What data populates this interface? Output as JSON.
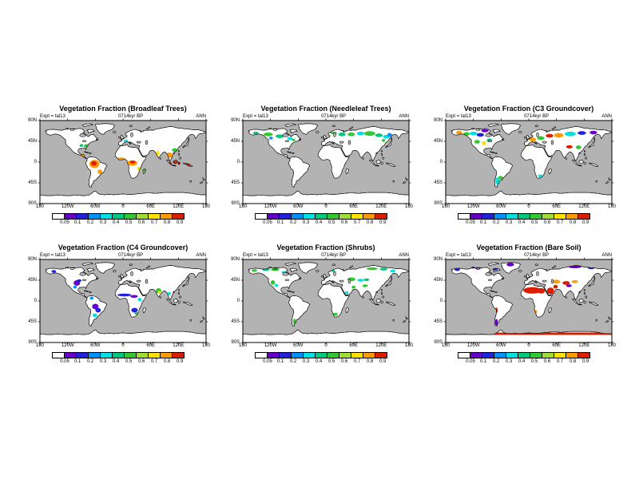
{
  "figure": {
    "background": "#ffffff",
    "ocean_color": "#b3b3b3",
    "land_color": "#ffffff",
    "coast_color": "#000000"
  },
  "axes": {
    "lat_labels": [
      "90N",
      "45N",
      "0",
      "45S",
      "90S"
    ],
    "lon_labels": [
      "180",
      "120W",
      "60W",
      "0",
      "60E",
      "120E",
      "180"
    ]
  },
  "colorbar": {
    "labels": [
      "0.05",
      "0.1",
      "0.2",
      "0.3",
      "0.4",
      "0.5",
      "0.6",
      "0.7",
      "0.8",
      "0.9"
    ],
    "colors": [
      "#ffffff",
      "#6400c8",
      "#2222dd",
      "#0091ff",
      "#00e1e1",
      "#00c87d",
      "#32c832",
      "#a0dc32",
      "#ffe100",
      "#ff9b00",
      "#dc1e00"
    ]
  },
  "panels": [
    {
      "title": "Vegetation Fraction (Broadleaf Trees)",
      "expt": "Expt = tal13",
      "time": "0714kyr BP",
      "season": "ANN",
      "patches": [
        [
          -62,
          -4,
          11,
          9,
          "#ff9b00"
        ],
        [
          -63,
          -3,
          6,
          5,
          "#dc1e00"
        ],
        [
          -50,
          -21,
          5,
          5,
          "#ff9b00"
        ],
        [
          -88,
          13,
          6,
          4,
          "#ff9b00"
        ],
        [
          -79,
          35,
          6,
          4,
          "#32c832"
        ],
        [
          -90,
          36,
          4,
          3,
          "#00c87d"
        ],
        [
          20,
          -2,
          11,
          6,
          "#ff9b00"
        ],
        [
          21,
          0,
          6,
          3,
          "#dc1e00"
        ],
        [
          -4,
          7,
          9,
          3,
          "#ff9b00"
        ],
        [
          35,
          -14,
          4,
          4,
          "#ffe100"
        ],
        [
          47,
          -19,
          2.5,
          4,
          "#32c832"
        ],
        [
          75,
          19,
          3,
          6,
          "#ffe100"
        ],
        [
          100,
          15,
          7,
          6,
          "#ff9b00"
        ],
        [
          113,
          -2,
          14,
          5,
          "#dc1e00"
        ],
        [
          141,
          -6,
          7,
          3,
          "#dc1e00"
        ],
        [
          148,
          -26,
          4,
          8,
          "#ff9b00"
        ],
        [
          112,
          26,
          6,
          4,
          "#32c832"
        ],
        [
          6,
          46,
          5,
          3,
          "#00e1e1"
        ]
      ]
    },
    {
      "title": "Vegetation Fraction (Needleleaf Trees)",
      "expt": "Expt = tal13",
      "time": "0714kyr BP",
      "season": "ANN",
      "patches": [
        [
          -152,
          63,
          6,
          3,
          "#00c87d"
        ],
        [
          -125,
          60,
          10,
          4,
          "#32c832"
        ],
        [
          -100,
          56,
          9,
          4,
          "#00c87d"
        ],
        [
          -78,
          51,
          6,
          3,
          "#00e1e1"
        ],
        [
          -119,
          52,
          4,
          3,
          "#0091ff"
        ],
        [
          17,
          63,
          7,
          3,
          "#32c832"
        ],
        [
          35,
          60,
          8,
          4,
          "#00c87d"
        ],
        [
          55,
          60,
          8,
          4,
          "#32c832"
        ],
        [
          75,
          62,
          8,
          4,
          "#00e1e1"
        ],
        [
          95,
          62,
          12,
          5,
          "#32c832"
        ],
        [
          115,
          58,
          8,
          4,
          "#00c87d"
        ],
        [
          131,
          55,
          7,
          4,
          "#00e1e1"
        ],
        [
          125,
          47,
          4,
          3,
          "#32c832"
        ],
        [
          138,
          59,
          5,
          4,
          "#0091ff"
        ],
        [
          -70,
          48,
          4,
          2.5,
          "#32c832"
        ]
      ]
    },
    {
      "title": "Vegetation Fraction (C3 Groundcover)",
      "expt": "Expt = tal13",
      "time": "0714kyr BP",
      "season": "ANN",
      "patches": [
        [
          -151,
          64,
          7,
          3.5,
          "#ff9b00"
        ],
        [
          -135,
          61,
          7,
          4,
          "#32c832"
        ],
        [
          -120,
          62,
          8,
          4,
          "#00e1e1"
        ],
        [
          -105,
          59,
          8,
          4,
          "#2222dd"
        ],
        [
          -95,
          68,
          8,
          3.5,
          "#6400c8"
        ],
        [
          -112,
          44,
          6,
          4,
          "#32c832"
        ],
        [
          -97,
          41,
          5,
          4,
          "#ffe100"
        ],
        [
          -85,
          47,
          6,
          4,
          "#00c87d"
        ],
        [
          -68,
          -41,
          4,
          8,
          "#00e1e1"
        ],
        [
          -61,
          -34,
          5,
          4,
          "#32c832"
        ],
        [
          8,
          49,
          8,
          4,
          "#ff9b00"
        ],
        [
          26,
          52,
          8,
          4,
          "#32c832"
        ],
        [
          45,
          57,
          8,
          4,
          "#dc1e00"
        ],
        [
          65,
          58,
          10,
          5,
          "#ff9b00"
        ],
        [
          90,
          61,
          12,
          5,
          "#00e1e1"
        ],
        [
          115,
          63,
          9,
          4,
          "#2222dd"
        ],
        [
          140,
          64,
          8,
          4,
          "#6400c8"
        ],
        [
          88,
          33,
          7,
          3.5,
          "#dc1e00"
        ],
        [
          108,
          32,
          6,
          4,
          "#32c832"
        ],
        [
          25,
          -30,
          5,
          3,
          "#00e1e1"
        ],
        [
          143,
          -35,
          5,
          3,
          "#32c832"
        ],
        [
          118,
          -31,
          4,
          3,
          "#00e1e1"
        ],
        [
          -70,
          60,
          5,
          3,
          "#0091ff"
        ]
      ]
    },
    {
      "title": "Vegetation Fraction (C4 Groundcover)",
      "expt": "Expt = tal13",
      "time": "0714kyr BP",
      "season": "ANN",
      "patches": [
        [
          -100,
          39,
          7,
          6,
          "#6400c8"
        ],
        [
          -95,
          44,
          5,
          3,
          "#2222dd"
        ],
        [
          -104,
          30,
          4,
          3,
          "#0091ff"
        ],
        [
          -150,
          64,
          5,
          3,
          "#2222dd"
        ],
        [
          -60,
          -12,
          7,
          6,
          "#6400c8"
        ],
        [
          -54,
          -20,
          6,
          5,
          "#2222dd"
        ],
        [
          -61,
          -31,
          5,
          4,
          "#00e1e1"
        ],
        [
          -68,
          6,
          4,
          3,
          "#0091ff"
        ],
        [
          3,
          13,
          15,
          3,
          "#2222dd"
        ],
        [
          24,
          10,
          8,
          3,
          "#6400c8"
        ],
        [
          36,
          3,
          4,
          4,
          "#00e1e1"
        ],
        [
          25,
          -20,
          7,
          5,
          "#2222dd"
        ],
        [
          29,
          -27,
          4,
          3,
          "#32c832"
        ],
        [
          77,
          22,
          6,
          6,
          "#32c832"
        ],
        [
          78,
          19,
          3,
          3,
          "#ffe100"
        ],
        [
          100,
          16,
          4,
          3,
          "#00e1e1"
        ],
        [
          133,
          -18,
          9,
          5,
          "#ff9b00"
        ],
        [
          129,
          -15,
          4,
          3,
          "#dc1e00"
        ],
        [
          142,
          -22,
          4,
          3,
          "#ffe100"
        ]
      ]
    },
    {
      "title": "Vegetation Fraction (Shrubs)",
      "expt": "Expt = tal13",
      "time": "0714kyr BP",
      "season": "ANN",
      "patches": [
        [
          -155,
          66,
          6,
          3,
          "#32c832"
        ],
        [
          -130,
          68,
          8,
          3,
          "#00c87d"
        ],
        [
          -110,
          68,
          9,
          3,
          "#32c832"
        ],
        [
          -90,
          62,
          6,
          3,
          "#00e1e1"
        ],
        [
          -115,
          40,
          5,
          5,
          "#32c832"
        ],
        [
          -107,
          34,
          4,
          3,
          "#00e1e1"
        ],
        [
          -68,
          -45,
          3,
          7,
          "#32c832"
        ],
        [
          20,
          -29,
          6,
          3,
          "#32c832"
        ],
        [
          15,
          66,
          4,
          3,
          "#00c87d"
        ],
        [
          55,
          47,
          9,
          4,
          "#32c832"
        ],
        [
          75,
          45,
          7,
          3,
          "#00e1e1"
        ],
        [
          88,
          46,
          6,
          3,
          "#00c87d"
        ],
        [
          85,
          33,
          6,
          3,
          "#32c832"
        ],
        [
          100,
          70,
          12,
          3,
          "#32c832"
        ],
        [
          125,
          69,
          8,
          3,
          "#00c87d"
        ],
        [
          145,
          65,
          6,
          3,
          "#00e1e1"
        ],
        [
          133,
          -26,
          10,
          6,
          "#32c832"
        ],
        [
          121,
          -26,
          5,
          4,
          "#00e1e1"
        ],
        [
          45,
          18,
          4,
          3,
          "#00e1e1"
        ],
        [
          60,
          30,
          4,
          3,
          "#32c832"
        ]
      ]
    },
    {
      "title": "Vegetation Fraction (Bare Soil)",
      "expt": "Expt = tal13",
      "time": "0714kyr BP",
      "season": "ANN",
      "patches": [
        [
          8,
          23,
          20,
          7,
          "#dc1e00"
        ],
        [
          27,
          22,
          8,
          6,
          "#dc1e00"
        ],
        [
          47,
          22,
          8,
          7,
          "#dc1e00"
        ],
        [
          58,
          31,
          5,
          4,
          "#dc1e00"
        ],
        [
          60,
          42,
          8,
          4,
          "#ff9b00"
        ],
        [
          81,
          39,
          8,
          4,
          "#dc1e00"
        ],
        [
          100,
          42,
          7,
          3,
          "#ff9b00"
        ],
        [
          87,
          33,
          6,
          3,
          "#6400c8"
        ],
        [
          130,
          -26,
          11,
          7,
          "#dc1e00"
        ],
        [
          119,
          -25,
          5,
          4,
          "#ff9b00"
        ],
        [
          -110,
          73,
          12,
          3,
          "#6400c8"
        ],
        [
          -75,
          69,
          8,
          3,
          "#2222dd"
        ],
        [
          -40,
          79,
          8,
          4,
          "#6400c8"
        ],
        [
          100,
          74,
          14,
          3,
          "#6400c8"
        ],
        [
          135,
          72,
          8,
          3,
          "#2222dd"
        ],
        [
          -70,
          -46,
          3,
          7,
          "#6400c8"
        ],
        [
          -70,
          -20,
          2.5,
          6,
          "#dc1e00"
        ],
        [
          15,
          -24,
          3,
          5,
          "#ff9b00"
        ],
        [
          -155,
          68,
          6,
          3,
          "#2222dd"
        ],
        [
          0,
          -71,
          360,
          5,
          "#dc1e00",
          "rect"
        ]
      ]
    }
  ],
  "chart_data": {
    "type": "heatmap",
    "subtype": "global-map-grid",
    "projection": "equirectangular",
    "layout": {
      "rows": 2,
      "cols": 3
    },
    "title_prefix": "Vegetation Fraction",
    "variables": [
      "Broadleaf Trees",
      "Needleleaf Trees",
      "C3 Groundcover",
      "C4 Groundcover",
      "Shrubs",
      "Bare Soil"
    ],
    "experiment": "tal13",
    "time_label": "0714kyr BP",
    "season": "ANN",
    "lon_range": [
      -180,
      180
    ],
    "lat_range": [
      -90,
      90
    ],
    "lon_ticks_deg": [
      -180,
      -120,
      -60,
      0,
      60,
      120,
      180
    ],
    "lat_ticks_deg": [
      90,
      45,
      0,
      -45,
      -90
    ],
    "levels": [
      0.05,
      0.1,
      0.2,
      0.3,
      0.4,
      0.5,
      0.6,
      0.7,
      0.8,
      0.9
    ],
    "palette": [
      "#ffffff",
      "#6400c8",
      "#2222dd",
      "#0091ff",
      "#00e1e1",
      "#00c87d",
      "#32c832",
      "#a0dc32",
      "#ffe100",
      "#ff9b00",
      "#dc1e00"
    ],
    "color_to_fraction_bin": {
      "#ffffff": "<0.05",
      "#6400c8": "0.05-0.1",
      "#2222dd": "0.1-0.2",
      "#0091ff": "0.2-0.3",
      "#00e1e1": "0.3-0.4",
      "#00c87d": "0.4-0.5",
      "#32c832": "0.5-0.6",
      "#a0dc32": "0.6-0.7",
      "#ffe100": "0.7-0.8",
      "#ff9b00": "0.8-0.9",
      "#dc1e00": ">0.9"
    },
    "note": "Spatial values per panel are encoded in panels[].patches as [lon, lat, rx_deg, ry_deg, color] ellipses ('rect' variant = [lon, lat, w_deg, h_deg, color, 'rect']); colors map to fraction bins via color_to_fraction_bin."
  }
}
